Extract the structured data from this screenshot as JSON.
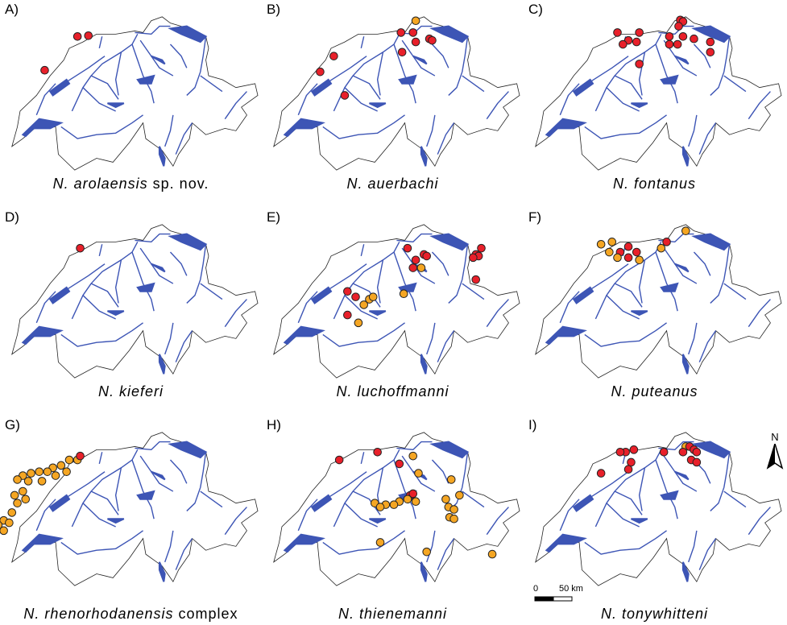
{
  "panels": [
    {
      "letter": "A)",
      "species": "N. arolaensis",
      "suffix": " sp. nov.",
      "points": [
        {
          "lon": 7.2,
          "lat": 47.55,
          "kind": "red"
        },
        {
          "lon": 7.4,
          "lat": 47.56,
          "kind": "red"
        },
        {
          "lon": 6.6,
          "lat": 47.12,
          "kind": "red"
        }
      ]
    },
    {
      "letter": "B)",
      "species": "N. auerbachi",
      "suffix": "",
      "points": [
        {
          "lon": 8.6,
          "lat": 47.75,
          "kind": "orange"
        },
        {
          "lon": 8.33,
          "lat": 47.6,
          "kind": "red"
        },
        {
          "lon": 8.55,
          "lat": 47.6,
          "kind": "red"
        },
        {
          "lon": 8.6,
          "lat": 47.48,
          "kind": "red"
        },
        {
          "lon": 8.85,
          "lat": 47.52,
          "kind": "red"
        },
        {
          "lon": 8.9,
          "lat": 47.5,
          "kind": "red"
        },
        {
          "lon": 8.35,
          "lat": 47.35,
          "kind": "red"
        },
        {
          "lon": 7.1,
          "lat": 47.3,
          "kind": "red"
        },
        {
          "lon": 6.85,
          "lat": 47.1,
          "kind": "red"
        },
        {
          "lon": 7.3,
          "lat": 46.8,
          "kind": "red"
        }
      ]
    },
    {
      "letter": "C)",
      "species": "N. fontanus",
      "suffix": "",
      "points": [
        {
          "lon": 8.65,
          "lat": 47.76,
          "kind": "red"
        },
        {
          "lon": 8.7,
          "lat": 47.74,
          "kind": "red"
        },
        {
          "lon": 8.62,
          "lat": 47.68,
          "kind": "red"
        },
        {
          "lon": 7.5,
          "lat": 47.6,
          "kind": "red"
        },
        {
          "lon": 7.9,
          "lat": 47.6,
          "kind": "red"
        },
        {
          "lon": 7.7,
          "lat": 47.5,
          "kind": "red"
        },
        {
          "lon": 7.85,
          "lat": 47.48,
          "kind": "red"
        },
        {
          "lon": 7.6,
          "lat": 47.45,
          "kind": "red"
        },
        {
          "lon": 8.45,
          "lat": 47.55,
          "kind": "red"
        },
        {
          "lon": 8.7,
          "lat": 47.55,
          "kind": "red"
        },
        {
          "lon": 8.9,
          "lat": 47.52,
          "kind": "red"
        },
        {
          "lon": 9.2,
          "lat": 47.48,
          "kind": "red"
        },
        {
          "lon": 8.6,
          "lat": 47.45,
          "kind": "red"
        },
        {
          "lon": 9.2,
          "lat": 47.35,
          "kind": "red"
        },
        {
          "lon": 8.45,
          "lat": 47.45,
          "kind": "red"
        },
        {
          "lon": 7.9,
          "lat": 47.2,
          "kind": "red"
        }
      ]
    },
    {
      "letter": "D)",
      "species": "N. kieferi",
      "suffix": "",
      "points": [
        {
          "lon": 7.25,
          "lat": 47.5,
          "kind": "red"
        }
      ]
    },
    {
      "letter": "E)",
      "species": "N. luchoffmanni",
      "suffix": "",
      "points": [
        {
          "lon": 8.45,
          "lat": 47.5,
          "kind": "red"
        },
        {
          "lon": 8.75,
          "lat": 47.42,
          "kind": "red"
        },
        {
          "lon": 8.8,
          "lat": 47.4,
          "kind": "red"
        },
        {
          "lon": 8.6,
          "lat": 47.35,
          "kind": "red"
        },
        {
          "lon": 8.7,
          "lat": 47.25,
          "kind": "orange"
        },
        {
          "lon": 8.55,
          "lat": 47.25,
          "kind": "red"
        },
        {
          "lon": 9.8,
          "lat": 47.5,
          "kind": "red"
        },
        {
          "lon": 9.7,
          "lat": 47.42,
          "kind": "red"
        },
        {
          "lon": 9.75,
          "lat": 47.4,
          "kind": "red"
        },
        {
          "lon": 9.65,
          "lat": 47.38,
          "kind": "red"
        },
        {
          "lon": 9.7,
          "lat": 47.1,
          "kind": "red"
        },
        {
          "lon": 7.35,
          "lat": 46.95,
          "kind": "red"
        },
        {
          "lon": 7.5,
          "lat": 46.88,
          "kind": "red"
        },
        {
          "lon": 7.75,
          "lat": 46.85,
          "kind": "orange"
        },
        {
          "lon": 7.82,
          "lat": 46.88,
          "kind": "orange"
        },
        {
          "lon": 7.65,
          "lat": 46.78,
          "kind": "orange"
        },
        {
          "lon": 8.38,
          "lat": 46.92,
          "kind": "orange"
        },
        {
          "lon": 7.35,
          "lat": 46.65,
          "kind": "red"
        },
        {
          "lon": 7.55,
          "lat": 46.55,
          "kind": "orange"
        }
      ]
    },
    {
      "letter": "F)",
      "species": "N. puteanus",
      "suffix": "",
      "points": [
        {
          "lon": 8.75,
          "lat": 47.72,
          "kind": "orange"
        },
        {
          "lon": 8.4,
          "lat": 47.58,
          "kind": "red"
        },
        {
          "lon": 8.3,
          "lat": 47.5,
          "kind": "orange"
        },
        {
          "lon": 7.2,
          "lat": 47.55,
          "kind": "orange"
        },
        {
          "lon": 7.4,
          "lat": 47.58,
          "kind": "orange"
        },
        {
          "lon": 7.7,
          "lat": 47.52,
          "kind": "red"
        },
        {
          "lon": 7.85,
          "lat": 47.45,
          "kind": "red"
        },
        {
          "lon": 7.35,
          "lat": 47.45,
          "kind": "orange"
        },
        {
          "lon": 7.55,
          "lat": 47.45,
          "kind": "red"
        },
        {
          "lon": 7.7,
          "lat": 47.38,
          "kind": "red"
        },
        {
          "lon": 7.5,
          "lat": 47.38,
          "kind": "orange"
        },
        {
          "lon": 7.9,
          "lat": 47.35,
          "kind": "orange"
        }
      ]
    },
    {
      "letter": "G)",
      "species": "N. rhenorhodanensis",
      "suffix": " complex",
      "points": [
        {
          "lon": 7.2,
          "lat": 47.45,
          "kind": "orange"
        },
        {
          "lon": 7.25,
          "lat": 47.5,
          "kind": "red"
        },
        {
          "lon": 7.05,
          "lat": 47.45,
          "kind": "orange"
        },
        {
          "lon": 6.9,
          "lat": 47.38,
          "kind": "orange"
        },
        {
          "lon": 6.75,
          "lat": 47.35,
          "kind": "orange"
        },
        {
          "lon": 6.65,
          "lat": 47.3,
          "kind": "orange"
        },
        {
          "lon": 6.5,
          "lat": 47.3,
          "kind": "orange"
        },
        {
          "lon": 6.35,
          "lat": 47.28,
          "kind": "orange"
        },
        {
          "lon": 6.2,
          "lat": 47.25,
          "kind": "orange"
        },
        {
          "lon": 6.1,
          "lat": 47.2,
          "kind": "orange"
        },
        {
          "lon": 6.3,
          "lat": 47.18,
          "kind": "orange"
        },
        {
          "lon": 6.55,
          "lat": 47.18,
          "kind": "orange"
        },
        {
          "lon": 6.8,
          "lat": 47.25,
          "kind": "orange"
        },
        {
          "lon": 7.0,
          "lat": 47.3,
          "kind": "orange"
        },
        {
          "lon": 6.2,
          "lat": 47.05,
          "kind": "orange"
        },
        {
          "lon": 6.05,
          "lat": 47.0,
          "kind": "orange"
        },
        {
          "lon": 6.1,
          "lat": 46.9,
          "kind": "orange"
        },
        {
          "lon": 6.25,
          "lat": 46.95,
          "kind": "orange"
        },
        {
          "lon": 6.0,
          "lat": 46.78,
          "kind": "orange"
        },
        {
          "lon": 5.85,
          "lat": 46.68,
          "kind": "orange"
        },
        {
          "lon": 5.75,
          "lat": 46.62,
          "kind": "orange"
        },
        {
          "lon": 5.95,
          "lat": 46.65,
          "kind": "orange"
        },
        {
          "lon": 5.7,
          "lat": 46.52,
          "kind": "orange"
        },
        {
          "lon": 5.6,
          "lat": 46.5,
          "kind": "orange"
        },
        {
          "lon": 5.85,
          "lat": 46.55,
          "kind": "orange"
        }
      ]
    },
    {
      "letter": "H)",
      "species": "N. thienemanni",
      "suffix": "",
      "points": [
        {
          "lon": 7.2,
          "lat": 47.45,
          "kind": "red"
        },
        {
          "lon": 7.9,
          "lat": 47.55,
          "kind": "red"
        },
        {
          "lon": 8.3,
          "lat": 47.4,
          "kind": "red"
        },
        {
          "lon": 8.55,
          "lat": 47.5,
          "kind": "orange"
        },
        {
          "lon": 8.65,
          "lat": 47.28,
          "kind": "orange"
        },
        {
          "lon": 9.25,
          "lat": 47.2,
          "kind": "orange"
        },
        {
          "lon": 8.5,
          "lat": 47.0,
          "kind": "red"
        },
        {
          "lon": 8.55,
          "lat": 47.02,
          "kind": "red"
        },
        {
          "lon": 8.3,
          "lat": 46.92,
          "kind": "orange"
        },
        {
          "lon": 8.45,
          "lat": 46.95,
          "kind": "orange"
        },
        {
          "lon": 8.2,
          "lat": 46.88,
          "kind": "orange"
        },
        {
          "lon": 8.05,
          "lat": 46.88,
          "kind": "orange"
        },
        {
          "lon": 7.85,
          "lat": 46.9,
          "kind": "orange"
        },
        {
          "lon": 7.95,
          "lat": 46.85,
          "kind": "orange"
        },
        {
          "lon": 8.6,
          "lat": 46.92,
          "kind": "orange"
        },
        {
          "lon": 9.15,
          "lat": 46.95,
          "kind": "orange"
        },
        {
          "lon": 9.2,
          "lat": 46.85,
          "kind": "orange"
        },
        {
          "lon": 9.3,
          "lat": 46.82,
          "kind": "orange"
        },
        {
          "lon": 9.22,
          "lat": 46.72,
          "kind": "orange"
        },
        {
          "lon": 9.3,
          "lat": 46.7,
          "kind": "orange"
        },
        {
          "lon": 9.4,
          "lat": 47.0,
          "kind": "orange"
        },
        {
          "lon": 7.95,
          "lat": 46.4,
          "kind": "orange"
        },
        {
          "lon": 8.8,
          "lat": 46.28,
          "kind": "orange"
        },
        {
          "lon": 10.0,
          "lat": 46.25,
          "kind": "orange"
        }
      ]
    },
    {
      "letter": "I)",
      "species": "N. tonywhitteni",
      "suffix": "",
      "points": [
        {
          "lon": 8.75,
          "lat": 47.62,
          "kind": "orange"
        },
        {
          "lon": 8.82,
          "lat": 47.62,
          "kind": "red"
        },
        {
          "lon": 8.9,
          "lat": 47.58,
          "kind": "red"
        },
        {
          "lon": 8.7,
          "lat": 47.55,
          "kind": "red"
        },
        {
          "lon": 8.95,
          "lat": 47.55,
          "kind": "red"
        },
        {
          "lon": 8.85,
          "lat": 47.45,
          "kind": "red"
        },
        {
          "lon": 8.95,
          "lat": 47.42,
          "kind": "red"
        },
        {
          "lon": 8.35,
          "lat": 47.55,
          "kind": "red"
        },
        {
          "lon": 7.65,
          "lat": 47.55,
          "kind": "red"
        },
        {
          "lon": 7.55,
          "lat": 47.55,
          "kind": "red"
        },
        {
          "lon": 7.8,
          "lat": 47.58,
          "kind": "red"
        },
        {
          "lon": 7.75,
          "lat": 47.42,
          "kind": "red"
        },
        {
          "lon": 7.7,
          "lat": 47.33,
          "kind": "red"
        },
        {
          "lon": 7.2,
          "lat": 47.28,
          "kind": "red"
        }
      ]
    }
  ],
  "colors": {
    "red": "#e8202a",
    "orange": "#f5a623",
    "river": "#3d55b5",
    "border": "#222222"
  },
  "north_label": "N",
  "scale": {
    "zero": "0",
    "distance": "50 km"
  }
}
